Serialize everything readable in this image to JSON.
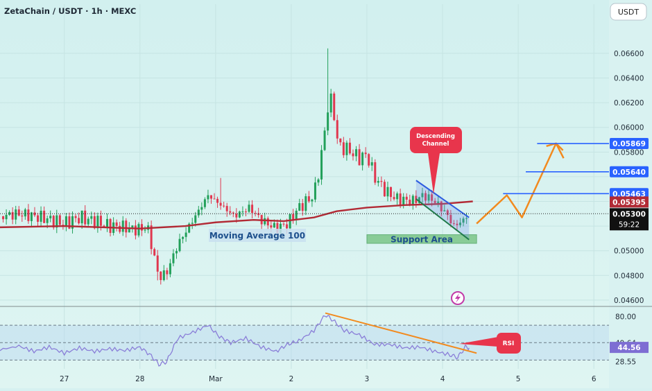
{
  "header": {
    "symbol_line": "ZetaChain / USDT · 1h · MEXC",
    "currency": "USDT"
  },
  "colors": {
    "background": "#d6f1f1",
    "up": "#22a05a",
    "down": "#e0374f",
    "ma": "#b22a35",
    "channel": "#2c5ce0",
    "support_fill": "#6fbf7a",
    "orange": "#f28a1e",
    "rsi_line": "#8a7ed8",
    "rsi_band": "#b9d6f0",
    "callout": "#e8354c",
    "price_line": "#222222"
  },
  "chart_data": [
    {
      "type": "candlestick",
      "title": "ZetaChain / USDT · 1h · MEXC",
      "x_axis": {
        "ticks": [
          {
            "label": "27",
            "day": 1
          },
          {
            "label": "28",
            "day": 2
          },
          {
            "label": "Mar",
            "day": 3
          },
          {
            "label": "2",
            "day": 4
          },
          {
            "label": "3",
            "day": 5
          },
          {
            "label": "4",
            "day": 6
          },
          {
            "label": "5",
            "day": 7
          },
          {
            "label": "6",
            "day": 8
          }
        ],
        "range_days": [
          0.15,
          8.2
        ]
      },
      "y_axis": {
        "ticks": [
          "0.06600",
          "0.06400",
          "0.06200",
          "0.06000",
          "0.05800",
          "0.05600",
          "0.05400",
          "0.05200",
          "0.05000",
          "0.04800",
          "0.04600"
        ],
        "ylim": [
          0.0456,
          0.0683
        ]
      },
      "price_path": [
        [
          0.15,
          0.0528
        ],
        [
          0.4,
          0.053
        ],
        [
          0.7,
          0.0527
        ],
        [
          1.0,
          0.0522
        ],
        [
          1.2,
          0.0527
        ],
        [
          1.4,
          0.0524
        ],
        [
          1.6,
          0.052
        ],
        [
          1.8,
          0.0519
        ],
        [
          1.95,
          0.0517
        ],
        [
          2.1,
          0.0519
        ],
        [
          2.25,
          0.0478
        ],
        [
          2.35,
          0.0482
        ],
        [
          2.5,
          0.0505
        ],
        [
          2.7,
          0.0525
        ],
        [
          2.9,
          0.0545
        ],
        [
          3.05,
          0.0538
        ],
        [
          3.25,
          0.0528
        ],
        [
          3.45,
          0.0535
        ],
        [
          3.6,
          0.0525
        ],
        [
          3.8,
          0.0518
        ],
        [
          3.95,
          0.0522
        ],
        [
          4.1,
          0.0535
        ],
        [
          4.3,
          0.0545
        ],
        [
          4.38,
          0.057
        ],
        [
          4.45,
          0.06
        ],
        [
          4.5,
          0.0625
        ],
        [
          4.55,
          0.0618
        ],
        [
          4.62,
          0.0585
        ],
        [
          4.75,
          0.0582
        ],
        [
          4.9,
          0.0575
        ],
        [
          5.0,
          0.0578
        ],
        [
          5.1,
          0.056
        ],
        [
          5.25,
          0.0548
        ],
        [
          5.4,
          0.0542
        ],
        [
          5.6,
          0.054
        ],
        [
          5.75,
          0.0545
        ],
        [
          5.9,
          0.054
        ],
        [
          6.05,
          0.053
        ],
        [
          6.15,
          0.052
        ],
        [
          6.28,
          0.0525
        ],
        [
          6.35,
          0.053
        ]
      ],
      "wick_highs": [
        {
          "day": 4.5,
          "high": 0.0664
        },
        {
          "day": 3.05,
          "high": 0.0559
        }
      ],
      "wick_lows": [
        {
          "day": 2.25,
          "low": 0.0476
        }
      ],
      "moving_average": {
        "label": "Moving Average 100",
        "values": [
          [
            0.15,
            0.0519
          ],
          [
            1.0,
            0.052
          ],
          [
            2.0,
            0.0518
          ],
          [
            2.6,
            0.052
          ],
          [
            3.0,
            0.0523
          ],
          [
            3.5,
            0.0525
          ],
          [
            3.9,
            0.0524
          ],
          [
            4.3,
            0.0527
          ],
          [
            4.6,
            0.0532
          ],
          [
            5.0,
            0.0535
          ],
          [
            5.5,
            0.0537
          ],
          [
            6.0,
            0.0538
          ],
          [
            6.4,
            0.054
          ]
        ]
      },
      "descending_channel": {
        "label": "Descending Channel",
        "upper": [
          [
            5.65,
            0.0557
          ],
          [
            6.35,
            0.0527
          ]
        ],
        "lower": [
          [
            5.65,
            0.0542
          ],
          [
            6.35,
            0.0509
          ]
        ]
      },
      "support_area": {
        "label": "Support Area",
        "low": 0.0506,
        "high": 0.0513,
        "from_day": 5.0,
        "to_day": 6.45
      },
      "projection": [
        [
          6.45,
          0.0522
        ],
        [
          6.85,
          0.0545
        ],
        [
          7.05,
          0.0527
        ],
        [
          7.5,
          0.0587
        ],
        [
          7.6,
          0.0575
        ]
      ],
      "levels": [
        {
          "label": "0.05869",
          "value": 0.05869,
          "from_day": 7.25,
          "color": "#2962ff"
        },
        {
          "label": "0.05640",
          "value": 0.0564,
          "from_day": 7.1,
          "color": "#2962ff"
        },
        {
          "label": "0.05463",
          "value": 0.05463,
          "from_day": 6.8,
          "color": "#2962ff"
        }
      ],
      "price_labels": [
        {
          "label": "0.05395",
          "value": 0.05395,
          "color": "#b22a35"
        },
        {
          "label": "0.05300",
          "value": 0.053,
          "color": "#111111",
          "sub": "59:22"
        }
      ]
    },
    {
      "type": "line",
      "title": "RSI",
      "y_axis": {
        "ticks": [
          "80.00",
          "49.64",
          "28.55"
        ],
        "ylim": [
          20,
          90
        ]
      },
      "band": {
        "upper": 70,
        "lower": 30
      },
      "current": {
        "label": "44.56",
        "value": 44.56
      },
      "values": [
        [
          0.15,
          42
        ],
        [
          0.4,
          46
        ],
        [
          0.6,
          40
        ],
        [
          0.8,
          45
        ],
        [
          1.0,
          38
        ],
        [
          1.2,
          44
        ],
        [
          1.4,
          40
        ],
        [
          1.6,
          43
        ],
        [
          1.8,
          41
        ],
        [
          2.0,
          45
        ],
        [
          2.15,
          35
        ],
        [
          2.25,
          25
        ],
        [
          2.35,
          28
        ],
        [
          2.5,
          55
        ],
        [
          2.7,
          62
        ],
        [
          2.9,
          70
        ],
        [
          3.05,
          57
        ],
        [
          3.2,
          50
        ],
        [
          3.4,
          55
        ],
        [
          3.6,
          45
        ],
        [
          3.8,
          40
        ],
        [
          3.95,
          48
        ],
        [
          4.1,
          52
        ],
        [
          4.3,
          64
        ],
        [
          4.45,
          82
        ],
        [
          4.55,
          76
        ],
        [
          4.7,
          64
        ],
        [
          4.9,
          59
        ],
        [
          5.1,
          48
        ],
        [
          5.3,
          48
        ],
        [
          5.5,
          44
        ],
        [
          5.7,
          45
        ],
        [
          5.9,
          40
        ],
        [
          6.1,
          36
        ],
        [
          6.2,
          33
        ],
        [
          6.3,
          45
        ],
        [
          6.35,
          44
        ]
      ],
      "divergence_line": [
        [
          4.45,
          84
        ],
        [
          6.45,
          38
        ]
      ]
    }
  ]
}
